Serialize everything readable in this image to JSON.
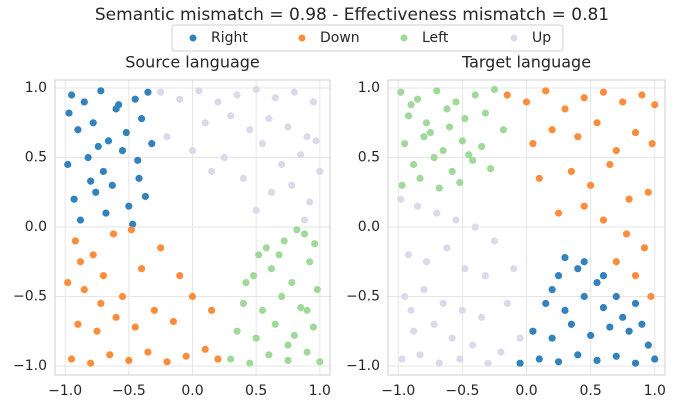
{
  "suptitle": "Semantic mismatch = 0.98 -  Effectiveness mismatch = 0.81",
  "legend": [
    {
      "name": "Right",
      "color": "#3182bd"
    },
    {
      "name": "Down",
      "color": "#fd8d3c"
    },
    {
      "name": "Left",
      "color": "#a1d99b"
    },
    {
      "name": "Up",
      "color": "#dadaeb"
    }
  ],
  "chart_data": [
    {
      "type": "scatter",
      "title": "Source language",
      "grid": true,
      "xlim": [
        -1.08,
        1.08
      ],
      "ylim": [
        -1.065,
        1.058
      ],
      "xticks": [
        {
          "value": -1.0,
          "label": "−1.0"
        },
        {
          "value": -0.5,
          "label": "−0.5"
        },
        {
          "value": 0.0,
          "label": "0.0"
        },
        {
          "value": 0.5,
          "label": "0.5"
        },
        {
          "value": 1.0,
          "label": "1.0"
        }
      ],
      "yticks": [
        {
          "value": -1.0,
          "label": "−1.0"
        },
        {
          "value": -0.5,
          "label": "−0.5"
        },
        {
          "value": 0.0,
          "label": "0.0"
        },
        {
          "value": 0.5,
          "label": "0.5"
        },
        {
          "value": 1.0,
          "label": "1.0"
        }
      ],
      "series": [
        {
          "x": [
            -0.95,
            -0.85,
            -0.72,
            -0.6,
            -0.45,
            -0.35,
            -0.9,
            -0.78,
            -0.66,
            -0.52,
            -0.4,
            -0.98,
            -0.82,
            -0.7,
            -0.55,
            -0.42,
            -0.32,
            -0.93,
            -0.76,
            -0.63,
            -0.5,
            -0.37,
            -0.88,
            -0.68,
            -0.47,
            -0.97,
            -0.8,
            -0.58,
            -0.43,
            -0.74
          ],
          "values": [
            0.95,
            0.9,
            0.98,
            0.85,
            0.92,
            0.97,
            0.7,
            0.75,
            0.62,
            0.68,
            0.78,
            0.45,
            0.5,
            0.4,
            0.55,
            0.35,
            0.6,
            0.2,
            0.25,
            0.3,
            0.15,
            0.22,
            0.05,
            0.1,
            0.02,
            0.82,
            0.33,
            0.88,
            0.48,
            0.58
          ]
        },
        {
          "x": [
            -0.95,
            -0.8,
            -0.65,
            -0.5,
            -0.35,
            -0.2,
            -0.05,
            0.1,
            0.2,
            -0.9,
            -0.75,
            -0.6,
            -0.45,
            -0.3,
            -0.15,
            0.0,
            -0.98,
            -0.85,
            -0.7,
            -0.55,
            -0.4,
            -0.25,
            -0.92,
            -0.78,
            -0.62,
            -0.48,
            -0.88,
            -0.72,
            0.15,
            -0.1
          ],
          "values": [
            -0.95,
            -0.98,
            -0.92,
            -0.96,
            -0.9,
            -0.97,
            -0.93,
            -0.88,
            -0.95,
            -0.7,
            -0.75,
            -0.65,
            -0.72,
            -0.6,
            -0.68,
            -0.5,
            -0.4,
            -0.45,
            -0.35,
            -0.5,
            -0.3,
            -0.15,
            -0.1,
            -0.2,
            -0.05,
            -0.02,
            -0.25,
            -0.55,
            -0.6,
            -0.35
          ]
        },
        {
          "x": [
            0.3,
            0.45,
            0.6,
            0.75,
            0.9,
            1.0,
            0.35,
            0.5,
            0.65,
            0.8,
            0.95,
            0.4,
            0.55,
            0.7,
            0.85,
            0.98,
            0.48,
            0.62,
            0.78,
            0.92,
            0.58,
            0.72,
            0.88,
            0.68,
            0.82,
            0.96,
            0.42,
            0.52,
            0.75,
            0.9
          ],
          "values": [
            -0.95,
            -0.98,
            -0.92,
            -0.96,
            -0.9,
            -0.97,
            -0.75,
            -0.8,
            -0.7,
            -0.78,
            -0.72,
            -0.55,
            -0.6,
            -0.5,
            -0.58,
            -0.45,
            -0.35,
            -0.3,
            -0.4,
            -0.25,
            -0.15,
            -0.1,
            -0.05,
            -0.2,
            -0.02,
            -0.12,
            -0.4,
            -0.2,
            -0.85,
            -0.6
          ]
        },
        {
          "x": [
            -0.25,
            -0.1,
            0.05,
            0.2,
            0.35,
            0.5,
            0.65,
            0.8,
            0.95,
            0.1,
            0.3,
            0.45,
            0.6,
            0.75,
            0.9,
            0.0,
            0.25,
            0.55,
            0.7,
            0.85,
            1.0,
            0.4,
            0.62,
            0.78,
            0.92,
            0.15,
            0.5,
            0.88,
            0.97,
            -0.2
          ],
          "values": [
            0.97,
            0.92,
            0.98,
            0.9,
            0.95,
            0.99,
            0.93,
            0.97,
            0.9,
            0.75,
            0.8,
            0.7,
            0.78,
            0.72,
            0.65,
            0.55,
            0.5,
            0.6,
            0.45,
            0.52,
            0.4,
            0.35,
            0.25,
            0.3,
            0.18,
            0.4,
            0.12,
            0.05,
            0.62,
            0.65
          ]
        }
      ]
    },
    {
      "type": "scatter",
      "title": "Target language",
      "grid": true,
      "xlim": [
        -1.08,
        1.08
      ],
      "ylim": [
        -1.065,
        1.058
      ],
      "xticks": [
        {
          "value": -1.0,
          "label": "−1.0"
        },
        {
          "value": -0.5,
          "label": "−0.5"
        },
        {
          "value": 0.0,
          "label": "0.0"
        },
        {
          "value": 0.5,
          "label": "0.5"
        },
        {
          "value": 1.0,
          "label": "1.0"
        }
      ],
      "yticks": [
        {
          "value": -1.0,
          "label": "−1.0"
        },
        {
          "value": -0.5,
          "label": "−0.5"
        },
        {
          "value": 0.0,
          "label": "0.0"
        },
        {
          "value": 0.5,
          "label": "0.5"
        },
        {
          "value": 1.0,
          "label": "1.0"
        }
      ],
      "series": [
        {
          "x": [
            -0.05,
            0.1,
            0.25,
            0.4,
            0.55,
            0.7,
            0.85,
            1.0,
            0.05,
            0.2,
            0.35,
            0.5,
            0.65,
            0.8,
            0.95,
            0.15,
            0.3,
            0.45,
            0.6,
            0.75,
            0.9,
            0.25,
            0.4,
            0.55,
            0.7,
            0.3,
            0.45,
            0.2,
            0.6,
            0.85
          ],
          "values": [
            -0.98,
            -0.95,
            -0.97,
            -0.92,
            -0.96,
            -0.93,
            -0.98,
            -0.95,
            -0.75,
            -0.8,
            -0.7,
            -0.78,
            -0.72,
            -0.75,
            -0.85,
            -0.55,
            -0.6,
            -0.5,
            -0.58,
            -0.65,
            -0.7,
            -0.35,
            -0.3,
            -0.4,
            -0.5,
            -0.22,
            -0.25,
            -0.45,
            -0.35,
            -0.55
          ]
        },
        {
          "x": [
            -0.15,
            0.0,
            0.15,
            0.3,
            0.45,
            0.6,
            0.75,
            0.9,
            1.0,
            0.05,
            0.2,
            0.4,
            0.55,
            0.7,
            0.85,
            0.98,
            0.1,
            0.35,
            0.5,
            0.65,
            0.8,
            0.95,
            0.25,
            0.6,
            0.78,
            0.92,
            0.7,
            0.85,
            0.97,
            0.45
          ],
          "values": [
            0.95,
            0.9,
            0.98,
            0.85,
            0.93,
            0.97,
            0.9,
            0.95,
            0.88,
            0.6,
            0.7,
            0.65,
            0.75,
            0.55,
            0.68,
            0.6,
            0.35,
            0.4,
            0.3,
            0.45,
            0.2,
            0.25,
            0.1,
            0.05,
            -0.05,
            -0.15,
            -0.25,
            -0.35,
            -0.5,
            0.15
          ]
        },
        {
          "x": [
            -0.98,
            -0.85,
            -0.7,
            -0.55,
            -0.4,
            -0.25,
            -0.92,
            -0.78,
            -0.62,
            -0.48,
            -0.32,
            -0.18,
            -0.95,
            -0.8,
            -0.65,
            -0.5,
            -0.35,
            -0.88,
            -0.72,
            -0.58,
            -0.42,
            -0.28,
            -0.97,
            -0.83,
            -0.68,
            -0.52,
            -0.9,
            -0.75,
            -0.6,
            -0.45
          ],
          "values": [
            0.97,
            0.92,
            0.98,
            0.9,
            0.95,
            0.99,
            0.8,
            0.75,
            0.85,
            0.78,
            0.82,
            0.7,
            0.6,
            0.65,
            0.55,
            0.62,
            0.58,
            0.45,
            0.5,
            0.4,
            0.48,
            0.42,
            0.3,
            0.35,
            0.28,
            0.32,
            0.88,
            0.68,
            0.72,
            0.52
          ]
        },
        {
          "x": [
            -0.98,
            -0.85,
            -0.7,
            -0.55,
            -0.4,
            -0.25,
            -0.1,
            -0.92,
            -0.78,
            -0.62,
            -0.48,
            -0.32,
            -0.15,
            -0.95,
            -0.8,
            -0.65,
            -0.5,
            -0.35,
            -0.88,
            -0.72,
            -0.58,
            -0.42,
            -0.2,
            -0.97,
            -0.83,
            -0.68,
            -0.52,
            -0.3,
            -0.9,
            -0.05
          ],
          "values": [
            0.2,
            0.15,
            0.1,
            0.05,
            0.0,
            -0.1,
            -0.3,
            -0.2,
            -0.25,
            -0.15,
            -0.3,
            -0.35,
            -0.55,
            -0.5,
            -0.45,
            -0.55,
            -0.6,
            -0.65,
            -0.75,
            -0.7,
            -0.8,
            -0.85,
            -0.9,
            -0.95,
            -0.92,
            -0.98,
            -0.95,
            -0.98,
            -0.6,
            -0.8
          ]
        }
      ]
    }
  ]
}
